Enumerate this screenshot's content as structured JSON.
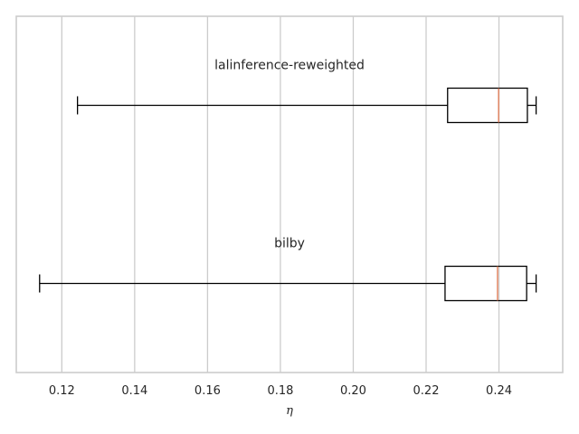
{
  "chart_data": {
    "type": "box",
    "orientation": "horizontal",
    "xlabel": "η",
    "xlim": [
      0.1075,
      0.2575
    ],
    "xticks": [
      0.12,
      0.14,
      0.16,
      0.18,
      0.2,
      0.22,
      0.24
    ],
    "xtick_labels": [
      "0.12",
      "0.14",
      "0.16",
      "0.18",
      "0.20",
      "0.22",
      "0.24"
    ],
    "grid": "vertical",
    "series": [
      {
        "name": "lalinference-reweighted",
        "whisker_low": 0.1243,
        "q1": 0.2259,
        "median": 0.2399,
        "q3": 0.2478,
        "whisker_high": 0.2502
      },
      {
        "name": "bilby",
        "whisker_low": 0.1139,
        "q1": 0.2252,
        "median": 0.2396,
        "q3": 0.2476,
        "whisker_high": 0.2502
      }
    ],
    "colors": {
      "box": "#000000",
      "median": "#e1764f",
      "grid": "#cccccc",
      "frame": "#cccccc"
    }
  }
}
